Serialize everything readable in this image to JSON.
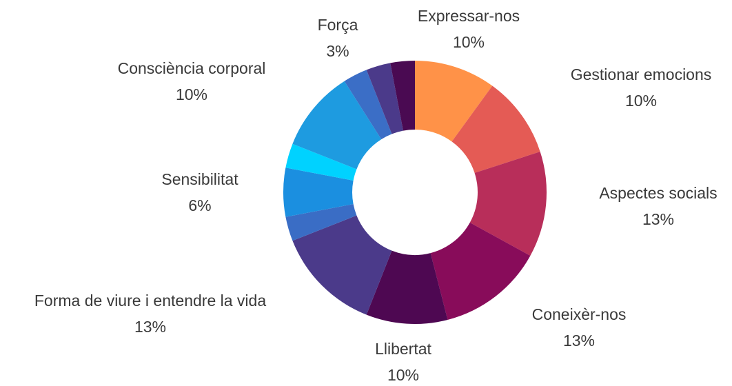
{
  "chart_data": {
    "type": "donut",
    "categories": [
      "Expressar-nos",
      "Gestionar emocions",
      "Aspectes socials",
      "Coneixèr-nos",
      "Llibertat",
      "Forma de viure i entendre la vida",
      null,
      "Sensibilitat",
      null,
      "Consciència corporal",
      "Força",
      null,
      null
    ],
    "values": [
      10,
      10,
      13,
      13,
      10,
      13,
      3,
      6,
      3,
      10,
      3,
      3,
      3
    ],
    "value_labels": [
      "10%",
      "10%",
      "13%",
      "13%",
      "10%",
      "13%",
      null,
      "6%",
      null,
      "10%",
      "3%",
      null,
      null
    ],
    "colors": [
      "#ff9248",
      "#e45b55",
      "#b82e5a",
      "#880c5a",
      "#4e0852",
      "#4b3a8a",
      "#3a6dc5",
      "#1b8fe0",
      "#00d2ff",
      "#1e9be0",
      "#3b6ec6",
      "#4b3a8a",
      "#4a0a52"
    ]
  }
}
